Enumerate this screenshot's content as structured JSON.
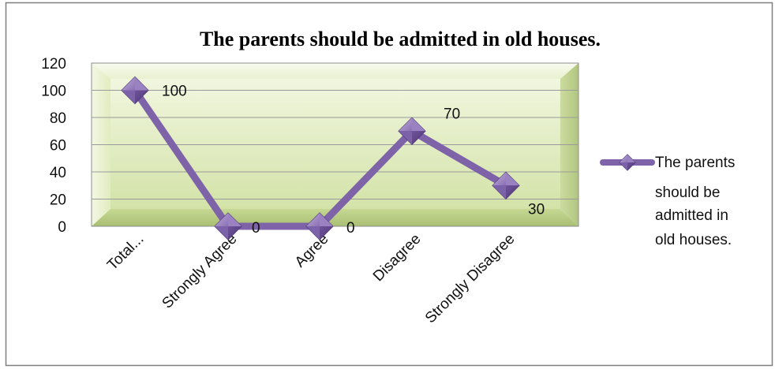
{
  "chart_data": {
    "type": "line",
    "title": "The parents should be admitted in old houses.",
    "categories": [
      "Total...",
      "Strongly Agree",
      "Agree",
      "Disagree",
      "Strongly Disagree"
    ],
    "series": [
      {
        "name": "The parents should be admitted in old houses.",
        "values": [
          100,
          0,
          0,
          70,
          30
        ],
        "data_labels": [
          "100",
          "0",
          "0",
          "70",
          "30"
        ],
        "color": "#7f63a8",
        "marker": "diamond"
      }
    ],
    "y_ticks": [
      "0",
      "20",
      "40",
      "60",
      "80",
      "100",
      "120"
    ],
    "ylim": [
      0,
      120
    ],
    "y_step": 20,
    "xlabel": "",
    "ylabel": "",
    "grid": true,
    "legend_position": "right",
    "plot_background": "#e6f0c9",
    "frame_color": "#7f7f7f",
    "line_color": "#7f63a8",
    "marker_color": "#8064a2"
  }
}
